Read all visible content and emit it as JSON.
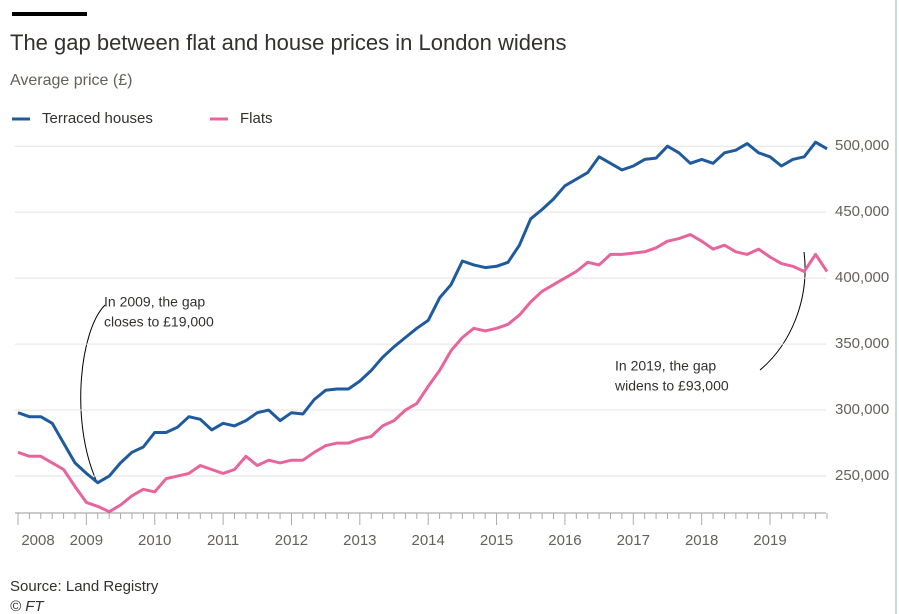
{
  "chart_data": {
    "type": "line",
    "title": "The gap between flat and house prices in London widens",
    "subtitle": "Average price (£)",
    "source": "Source: Land Registry",
    "credit": "© FT",
    "categories": [
      "2008",
      null,
      null,
      null,
      null,
      null,
      "2009",
      null,
      null,
      null,
      null,
      null,
      "2010",
      null,
      null,
      null,
      null,
      null,
      "2011",
      null,
      null,
      null,
      null,
      null,
      "2012",
      null,
      null,
      null,
      null,
      null,
      "2013",
      null,
      null,
      null,
      null,
      null,
      "2014",
      null,
      null,
      null,
      null,
      null,
      "2015",
      null,
      null,
      null,
      null,
      null,
      "2016",
      null,
      null,
      null,
      null,
      null,
      "2017",
      null,
      null,
      null,
      null,
      null,
      "2018",
      null,
      null,
      null,
      null,
      null,
      "2019",
      null,
      null,
      null,
      null,
      null
    ],
    "series": [
      {
        "name": "Terraced houses",
        "color": "#1f5a9e",
        "values": [
          298000,
          295000,
          295000,
          290000,
          275000,
          260000,
          252000,
          245000,
          250000,
          260000,
          268000,
          272000,
          283000,
          283000,
          287000,
          295000,
          293000,
          285000,
          290000,
          288000,
          292000,
          298000,
          300000,
          292000,
          298000,
          297000,
          308000,
          315000,
          316000,
          316000,
          322000,
          330000,
          340000,
          348000,
          355000,
          362000,
          368000,
          385000,
          395000,
          413000,
          410000,
          408000,
          409000,
          412000,
          425000,
          445000,
          452000,
          460000,
          470000,
          475000,
          480000,
          492000,
          487000,
          482000,
          485000,
          490000,
          491000,
          500000,
          495000,
          487000,
          490000,
          487000,
          495000,
          497000,
          502000,
          495000,
          492000,
          485000,
          490000,
          492000,
          503000,
          498000
        ]
      },
      {
        "name": "Flats",
        "color": "#e8649c",
        "values": [
          268000,
          265000,
          265000,
          260000,
          255000,
          242000,
          230000,
          227000,
          223000,
          228000,
          235000,
          240000,
          238000,
          248000,
          250000,
          252000,
          258000,
          255000,
          252000,
          255000,
          265000,
          258000,
          262000,
          260000,
          262000,
          262000,
          268000,
          273000,
          275000,
          275000,
          278000,
          280000,
          288000,
          292000,
          300000,
          305000,
          318000,
          330000,
          345000,
          355000,
          362000,
          360000,
          362000,
          365000,
          372000,
          382000,
          390000,
          395000,
          400000,
          405000,
          412000,
          410000,
          418000,
          418000,
          419000,
          420000,
          423000,
          428000,
          430000,
          433000,
          428000,
          422000,
          425000,
          420000,
          418000,
          422000,
          416000,
          411000,
          409000,
          405000,
          418000,
          405000
        ]
      }
    ],
    "ylim": [
      222000,
      510000
    ],
    "yticks": [
      {
        "value": 250000,
        "label": "250,000"
      },
      {
        "value": 300000,
        "label": "300,000"
      },
      {
        "value": 350000,
        "label": "350,000"
      },
      {
        "value": 400000,
        "label": "400,000"
      },
      {
        "value": 450000,
        "label": "450,000"
      },
      {
        "value": 500000,
        "label": "500,000"
      }
    ],
    "grid": true,
    "annotations": [
      {
        "lines": [
          "In 2009, the gap",
          "closes to £19,000"
        ]
      },
      {
        "lines": [
          "In 2019, the gap",
          "widens to £93,000"
        ]
      }
    ]
  }
}
